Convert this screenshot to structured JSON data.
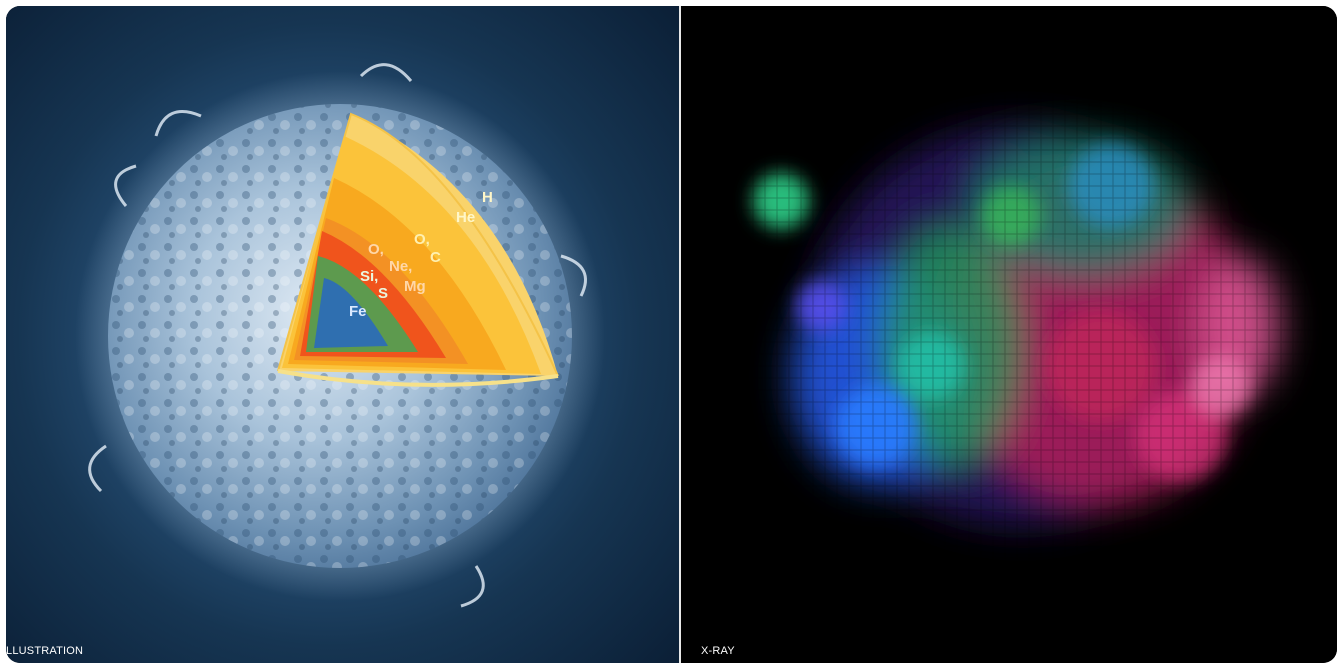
{
  "panels": {
    "left": {
      "caption": "LLUSTRATION",
      "layers": {
        "h": "H",
        "he": "He",
        "o": "O,",
        "c": "C",
        "ne": "Ne,",
        "mg": "Mg",
        "si": "Si,",
        "s": "S",
        "fe": "Fe"
      }
    },
    "right": {
      "caption": "X-RAY"
    }
  },
  "colors": {
    "iron_core": "#2f6fb0",
    "si_s_shell": "#5d9a4e",
    "o_ne_mg_shell": "#f05a1c",
    "o_c_shell": "#f7a41d",
    "he_shell": "#f9be2c",
    "h_shell": "#fbd25a"
  }
}
